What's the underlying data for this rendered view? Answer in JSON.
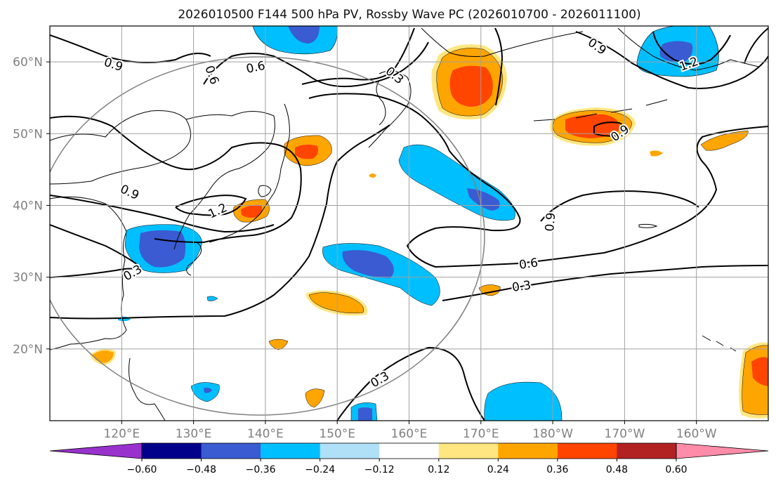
{
  "title": "2026010500 F144 500 hPa PV, Rossby Wave PC (2026010700 - 2026011100)",
  "map": {
    "lon_ticks": [
      "120°E",
      "130°E",
      "140°E",
      "150°E",
      "160°E",
      "170°E",
      "180°W",
      "170°W",
      "160°W"
    ],
    "lat_ticks": [
      "60°N",
      "50°N",
      "40°N",
      "30°N",
      "20°N"
    ],
    "lon_range": [
      110,
      210
    ],
    "lat_range": [
      10,
      65
    ],
    "grid": true,
    "contour_labels": [
      "0.9",
      "0.6",
      "0.6",
      "0.3",
      "0.9",
      "0.9",
      "1.2",
      "0.9",
      "1.2",
      "0.3",
      "0.9",
      "0.6",
      "0.3",
      "0.3"
    ]
  },
  "colorbar": {
    "labels": [
      "−0.60",
      "−0.48",
      "−0.36",
      "−0.24",
      "−0.12",
      "0.12",
      "0.24",
      "0.36",
      "0.48",
      "0.60"
    ],
    "colors": [
      "#9932cc",
      "#00008b",
      "#3a5bd1",
      "#00bfff",
      "#b0e0f8",
      "#ffffff",
      "#ffe680",
      "#ffa500",
      "#ff4500",
      "#b22222",
      "#ff8ca8"
    ]
  },
  "palette": {
    "neg_dark": "#3a5bd1",
    "neg_mid": "#00bfff",
    "neg_light": "#b0e0f8",
    "pos_light": "#ffe680",
    "pos_mid": "#ffa500",
    "pos_dark": "#ff4500"
  }
}
